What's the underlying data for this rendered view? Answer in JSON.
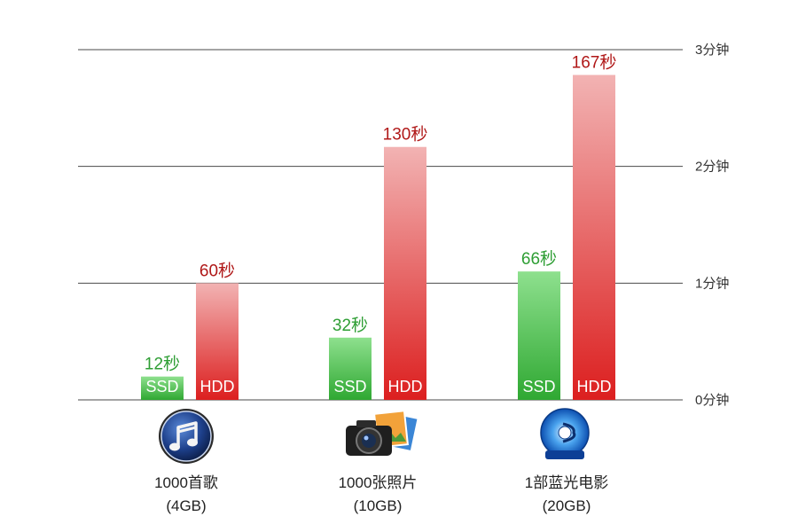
{
  "chart_data": {
    "type": "bar",
    "unit_suffix": "秒",
    "categories": [
      {
        "name": "1000首歌",
        "size": "(4GB)",
        "icon": "music-note-icon"
      },
      {
        "name": "1000张照片",
        "size": "(10GB)",
        "icon": "camera-photos-icon"
      },
      {
        "name": "1部蓝光电影",
        "size": "(20GB)",
        "icon": "bluray-disc-icon"
      }
    ],
    "series": [
      {
        "name": "SSD",
        "values": [
          12,
          32,
          66
        ],
        "color_top": "#8ee08e",
        "color_bottom": "#2fa832",
        "label_color": "#2e9e34"
      },
      {
        "name": "HDD",
        "values": [
          60,
          130,
          167
        ],
        "color_top": "#f2b3b3",
        "color_bottom": "#dc1f1f",
        "label_color": "#b01818"
      }
    ],
    "value_labels": [
      [
        "12秒",
        "32秒",
        "66秒"
      ],
      [
        "60秒",
        "130秒",
        "167秒"
      ]
    ],
    "y_ticks": [
      {
        "value": 0,
        "label": "0分钟"
      },
      {
        "value": 60,
        "label": "1分钟"
      },
      {
        "value": 120,
        "label": "2分钟"
      },
      {
        "value": 180,
        "label": "3分钟"
      }
    ],
    "ylim": [
      0,
      180
    ],
    "grid": true,
    "legend": "none"
  }
}
